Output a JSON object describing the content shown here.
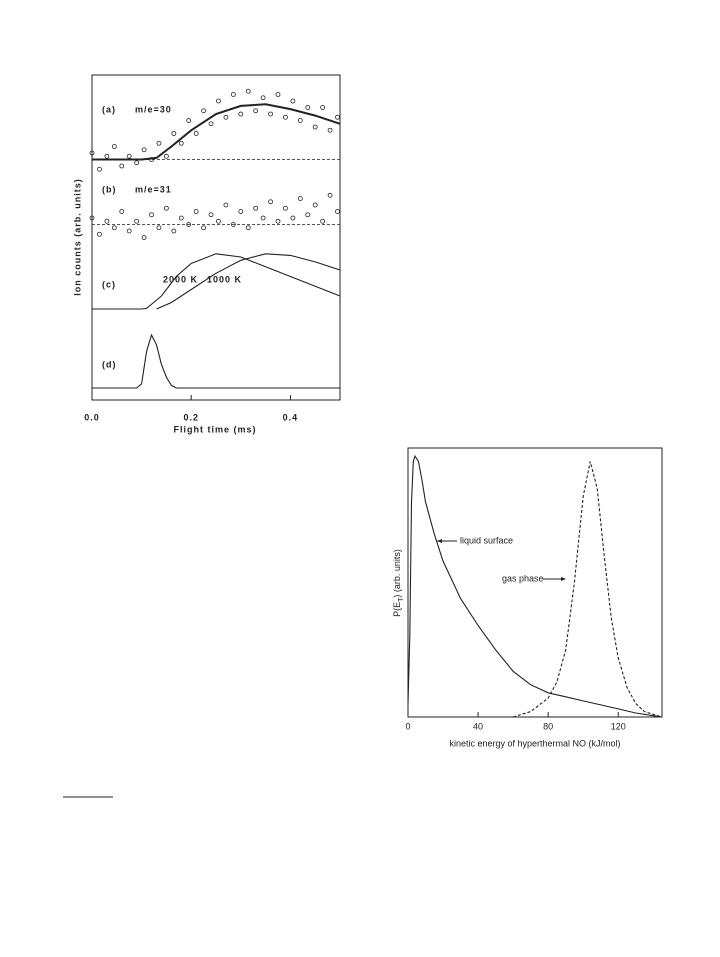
{
  "chart_data": [
    {
      "type": "scatter",
      "x_label": "Flight time (ms)",
      "y_label": "Ion counts (arb. units)",
      "xlim": [
        0,
        0.5
      ],
      "ylim": [
        0,
        10
      ],
      "xticks": [
        {
          "value": 0,
          "label": "0.0"
        },
        0.2,
        0.4
      ],
      "panels": [
        {
          "label": "(a)",
          "name": "m/e=30",
          "baseline": 7.4,
          "points": {
            "x": [
              0,
              0.015,
              0.03,
              0.045,
              0.06,
              0.075,
              0.09,
              0.105,
              0.12,
              0.135,
              0.15,
              0.165,
              0.18,
              0.195,
              0.21,
              0.225,
              0.24,
              0.255,
              0.27,
              0.285,
              0.3,
              0.315,
              0.33,
              0.345,
              0.36,
              0.375,
              0.39,
              0.405,
              0.42,
              0.435,
              0.45,
              0.465,
              0.48,
              0.495
            ],
            "values": [
              7.6,
              7.1,
              7.5,
              7.8,
              7.2,
              7.5,
              7.3,
              7.7,
              7.4,
              7.9,
              7.5,
              8.2,
              7.9,
              8.6,
              8.2,
              8.9,
              8.5,
              9.2,
              8.7,
              9.4,
              8.8,
              9.5,
              8.9,
              9.3,
              8.8,
              9.4,
              8.7,
              9.2,
              8.6,
              9.0,
              8.4,
              9.0,
              8.3,
              8.7
            ]
          },
          "curves": [
            {
              "x": [
                0,
                0.05,
                0.1,
                0.13,
                0.16,
                0.2,
                0.25,
                0.3,
                0.35,
                0.4,
                0.45,
                0.5
              ],
              "values": [
                7.4,
                7.4,
                7.4,
                7.45,
                7.8,
                8.3,
                8.8,
                9.05,
                9.1,
                8.95,
                8.75,
                8.5
              ]
            }
          ]
        },
        {
          "label": "(b)",
          "name": "m/e=31",
          "baseline": 5.4,
          "points": {
            "x": [
              0,
              0.015,
              0.03,
              0.045,
              0.06,
              0.075,
              0.09,
              0.105,
              0.12,
              0.135,
              0.15,
              0.165,
              0.18,
              0.195,
              0.21,
              0.225,
              0.24,
              0.255,
              0.27,
              0.285,
              0.3,
              0.315,
              0.33,
              0.345,
              0.36,
              0.375,
              0.39,
              0.405,
              0.42,
              0.435,
              0.45,
              0.465,
              0.48,
              0.495
            ],
            "values": [
              5.6,
              5.1,
              5.5,
              5.3,
              5.8,
              5.2,
              5.5,
              5.0,
              5.7,
              5.3,
              5.9,
              5.2,
              5.6,
              5.4,
              5.8,
              5.3,
              5.7,
              5.5,
              6.0,
              5.4,
              5.8,
              5.3,
              5.9,
              5.6,
              6.1,
              5.5,
              5.9,
              5.6,
              6.2,
              5.7,
              6.0,
              5.5,
              6.3,
              5.8
            ]
          },
          "curves": []
        },
        {
          "label": "(c)",
          "curves": [
            {
              "name": "2000 K",
              "x": [
                0,
                0.1,
                0.11,
                0.14,
                0.17,
                0.2,
                0.25,
                0.3,
                0.35,
                0.4,
                0.45,
                0.5
              ],
              "values": [
                2.8,
                2.8,
                2.82,
                3.2,
                3.8,
                4.2,
                4.5,
                4.4,
                4.1,
                3.8,
                3.5,
                3.2
              ]
            },
            {
              "name": "1000 K",
              "x": [
                0.13,
                0.16,
                0.2,
                0.25,
                0.3,
                0.35,
                0.4,
                0.45,
                0.5
              ],
              "values": [
                2.8,
                3.0,
                3.4,
                3.9,
                4.3,
                4.5,
                4.45,
                4.25,
                4.0
              ]
            }
          ]
        },
        {
          "label": "(d)",
          "curves": [
            {
              "x": [
                0,
                0.09,
                0.1,
                0.11,
                0.12,
                0.13,
                0.14,
                0.15,
                0.16,
                0.17,
                0.5
              ],
              "values": [
                0.37,
                0.37,
                0.5,
                1.5,
                2.0,
                1.7,
                1.1,
                0.7,
                0.45,
                0.37,
                0.37
              ]
            }
          ]
        }
      ]
    },
    {
      "type": "line",
      "x_label": "kinetic energy of hyperthermal NO (kJ/mol)",
      "y_label": "P(E",
      "y_label_sub": "T",
      "y_label_end": ") (arb. units)",
      "xlim": [
        0,
        145
      ],
      "ylim": [
        0,
        1
      ],
      "xticks": [
        0,
        40,
        80,
        120
      ],
      "series": [
        {
          "name": "liquid surface",
          "dash": false,
          "color": "#222222",
          "x": [
            0,
            1,
            2,
            3,
            4,
            6,
            8,
            10,
            15,
            20,
            30,
            40,
            50,
            60,
            70,
            80,
            90,
            100,
            110,
            120,
            130,
            140,
            145
          ],
          "values": [
            0.05,
            0.3,
            0.8,
            0.95,
            0.97,
            0.95,
            0.88,
            0.8,
            0.68,
            0.58,
            0.44,
            0.34,
            0.25,
            0.17,
            0.12,
            0.09,
            0.075,
            0.06,
            0.045,
            0.03,
            0.015,
            0.005,
            0
          ]
        },
        {
          "name": "gas phase",
          "dash": true,
          "color": "#222222",
          "x": [
            60,
            70,
            80,
            85,
            90,
            95,
            100,
            104,
            108,
            112,
            116,
            120,
            125,
            130,
            135,
            140,
            145
          ],
          "values": [
            0,
            0.02,
            0.07,
            0.13,
            0.25,
            0.5,
            0.82,
            0.95,
            0.85,
            0.6,
            0.37,
            0.22,
            0.11,
            0.05,
            0.02,
            0.01,
            0
          ]
        }
      ]
    }
  ]
}
